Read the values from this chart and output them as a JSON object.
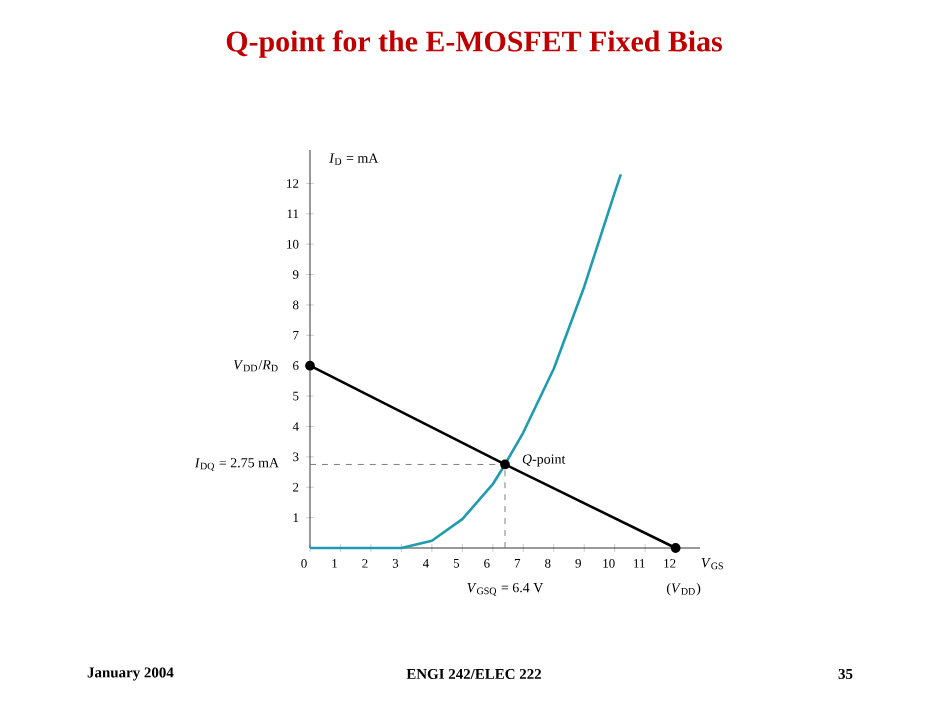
{
  "chart_data": {
    "type": "line",
    "title": "Q-point for the E-MOSFET Fixed Bias",
    "xlabel": "*V*$_{GS}$",
    "ylabel": "*I*$_{D}$ = mA",
    "xlim": [
      0,
      12.8
    ],
    "ylim": [
      0,
      13.1
    ],
    "xticks": [
      0,
      1,
      2,
      3,
      4,
      5,
      6,
      7,
      8,
      9,
      10,
      11,
      12
    ],
    "yticks": [
      1,
      2,
      3,
      4,
      5,
      6,
      7,
      8,
      9,
      10,
      11,
      12
    ],
    "grid": false,
    "series": [
      {
        "x": [
          0,
          3,
          4,
          5,
          6,
          6.4,
          7,
          8,
          9,
          10,
          10.2
        ],
        "values": [
          0,
          0,
          0.24,
          0.95,
          2.1,
          2.75,
          3.8,
          5.9,
          8.6,
          11.7,
          12.3
        ],
        "color": "#1f9bb0",
        "marker": "none",
        "line_style": "solid"
      },
      {
        "x": [
          0,
          6.4,
          12
        ],
        "values": [
          6,
          2.75,
          0
        ],
        "color": "#000000",
        "marker": "circle",
        "line_style": "solid"
      },
      {
        "x": [
          0,
          6.4
        ],
        "values": [
          2.75,
          2.75
        ],
        "color": "#808080",
        "marker": "none",
        "line_style": "dashed"
      },
      {
        "x": [
          6.4,
          6.4
        ],
        "values": [
          0,
          2.75
        ],
        "color": "#808080",
        "marker": "none",
        "line_style": "dashed"
      }
    ],
    "annotations": [
      {
        "text": "*V*$_{DD}$/*R*$_{D}$",
        "x": 0,
        "y": 6
      },
      {
        "text": "*I*$_{DQ}$ = 2.75 mA",
        "x": 0,
        "y": 2.75
      },
      {
        "text": "*Q*-point",
        "x": 6.4,
        "y": 2.75
      },
      {
        "text": "*V*$_{GSQ}$ = 6.4 V",
        "x": 6.4,
        "y": 0
      },
      {
        "text": "(*V*$_{DD}$)",
        "x": 12,
        "y": 0
      },
      "January 2004",
      "ENGI 242/ELEC 222",
      "35"
    ]
  }
}
